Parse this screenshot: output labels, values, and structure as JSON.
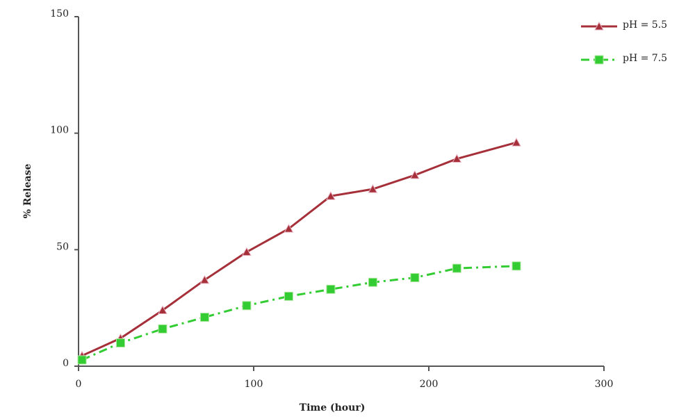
{
  "chart_data": {
    "type": "line",
    "x_label": "Time (hour)",
    "y_label": "% Release",
    "xlim": [
      0,
      300
    ],
    "xticks": [
      0,
      100,
      200,
      300
    ],
    "ylim": [
      0,
      150
    ],
    "yticks": [
      0,
      50,
      100,
      150
    ],
    "legend": "top-right",
    "series": [
      {
        "name": "pH = 5.5",
        "color": "#a5303a",
        "marker": "triangle",
        "dash": "solid",
        "x": [
          2,
          24,
          48,
          72,
          96,
          120,
          144,
          168,
          192,
          216,
          250
        ],
        "values": [
          4.5,
          12,
          24,
          37,
          49,
          59,
          73,
          76,
          82,
          89,
          96
        ]
      },
      {
        "name": "pH = 7.5",
        "color": "#33cc33",
        "marker": "square",
        "dash": "dashdot",
        "x": [
          2,
          24,
          48,
          72,
          96,
          120,
          144,
          168,
          192,
          216,
          250
        ],
        "values": [
          2.7,
          10,
          16,
          21,
          26,
          30,
          33,
          36,
          38,
          42,
          43
        ]
      }
    ]
  }
}
